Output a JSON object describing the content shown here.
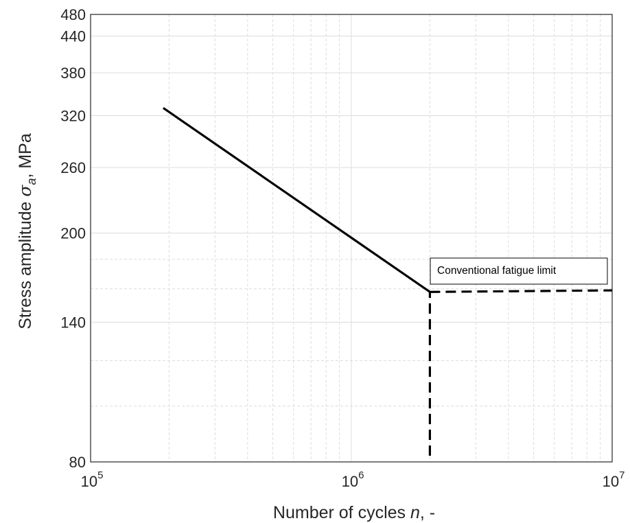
{
  "chart_data": {
    "type": "line",
    "title": "",
    "xlabel": {
      "prefix": "Number of cycles ",
      "var": "n",
      "suffix": ", -"
    },
    "ylabel": {
      "prefix": "Stress amplitude ",
      "sigma": "σ",
      "sub": "a",
      "suffix": ", MPa"
    },
    "x_scale": "log",
    "y_scale": "log",
    "xlim": [
      100000,
      10000000
    ],
    "ylim": [
      80,
      480
    ],
    "x_ticks": [
      {
        "value": 100000,
        "base": "10",
        "exp": "5"
      },
      {
        "value": 1000000,
        "base": "10",
        "exp": "6"
      },
      {
        "value": 10000000,
        "base": "10",
        "exp": "7"
      }
    ],
    "y_ticks": [
      {
        "value": 80,
        "label": "80"
      },
      {
        "value": 140,
        "label": "140"
      },
      {
        "value": 200,
        "label": "200"
      },
      {
        "value": 260,
        "label": "260"
      },
      {
        "value": 320,
        "label": "320"
      },
      {
        "value": 380,
        "label": "380"
      },
      {
        "value": 440,
        "label": "440"
      },
      {
        "value": 480,
        "label": "480"
      }
    ],
    "y_minor_grid": [
      100,
      120,
      160,
      180
    ],
    "grid": true,
    "series": [
      {
        "style": "solid",
        "color": "#000000",
        "x": [
          190000,
          2000000
        ],
        "y": [
          330,
          158
        ]
      },
      {
        "style": "dashed",
        "color": "#000000",
        "x": [
          2000000,
          10000000
        ],
        "y": [
          158,
          159
        ]
      },
      {
        "style": "dashed",
        "color": "#000000",
        "x": [
          2000000,
          2000000
        ],
        "y": [
          82,
          158
        ]
      }
    ],
    "annotations": [
      {
        "text": "Conventional fatigue limit"
      }
    ],
    "colors": {
      "grid": "#dcdcdc",
      "axis": "#262626",
      "line": "#000000"
    }
  }
}
